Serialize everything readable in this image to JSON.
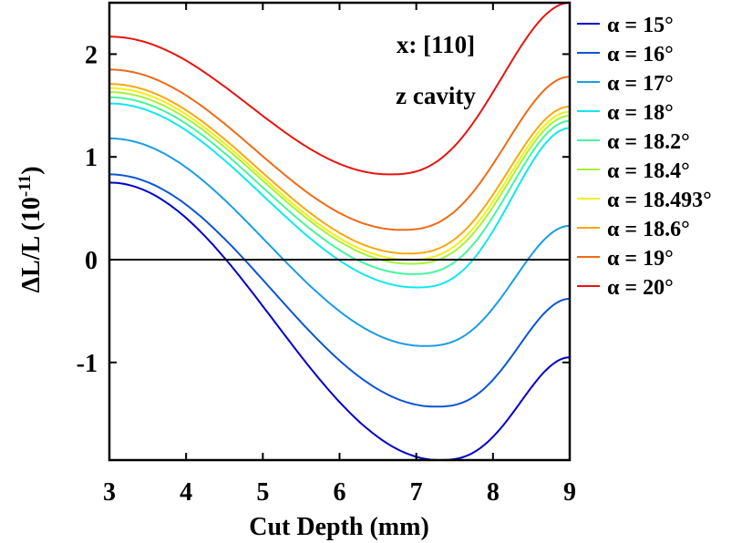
{
  "chart_data": {
    "type": "line",
    "xlabel": "Cut Depth (mm)",
    "ylabel_main": "ΔL/L (10",
    "ylabel_exp": "-11",
    "ylabel_close": ")",
    "xlim": [
      3,
      9
    ],
    "ylim": [
      -1.95,
      2.5
    ],
    "xticks": [
      3,
      4,
      5,
      6,
      7,
      8,
      9
    ],
    "yticks": [
      -1,
      0,
      1,
      2
    ],
    "ytick_labels": [
      "-1",
      "0",
      "1",
      "2"
    ],
    "annotations": [
      "x: [110]",
      "z cavity"
    ],
    "zero_line": 0,
    "series": [
      {
        "name": "α = 15°",
        "color": "#0000cc",
        "y3": 0.75,
        "min_x": 7.3,
        "min_y": -1.95,
        "y9": -0.95
      },
      {
        "name": "α = 16°",
        "color": "#0a55d8",
        "y3": 0.83,
        "min_x": 7.25,
        "min_y": -1.43,
        "y9": -0.38
      },
      {
        "name": "α = 17°",
        "color": "#1a9ce8",
        "y3": 1.18,
        "min_x": 7.1,
        "min_y": -0.84,
        "y9": 0.33
      },
      {
        "name": "α = 18°",
        "color": "#10e8f0",
        "y3": 1.52,
        "min_x": 7.0,
        "min_y": -0.27,
        "y9": 1.28
      },
      {
        "name": "α = 18.2°",
        "color": "#45f5a0",
        "y3": 1.58,
        "min_x": 6.95,
        "min_y": -0.14,
        "y9": 1.35
      },
      {
        "name": "α = 18.4°",
        "color": "#a5f23a",
        "y3": 1.63,
        "min_x": 6.92,
        "min_y": -0.04,
        "y9": 1.4
      },
      {
        "name": "α = 18.493°",
        "color": "#f2f010",
        "y3": 1.67,
        "min_x": 6.9,
        "min_y": 0.0,
        "y9": 1.44
      },
      {
        "name": "α = 18.6°",
        "color": "#f5a814",
        "y3": 1.71,
        "min_x": 6.88,
        "min_y": 0.06,
        "y9": 1.49
      },
      {
        "name": "α = 19°",
        "color": "#f06a14",
        "y3": 1.85,
        "min_x": 6.8,
        "min_y": 0.29,
        "y9": 1.78
      },
      {
        "name": "α = 20°",
        "color": "#e8140e",
        "y3": 2.17,
        "min_x": 6.65,
        "min_y": 0.83,
        "y9": 2.5
      }
    ]
  }
}
